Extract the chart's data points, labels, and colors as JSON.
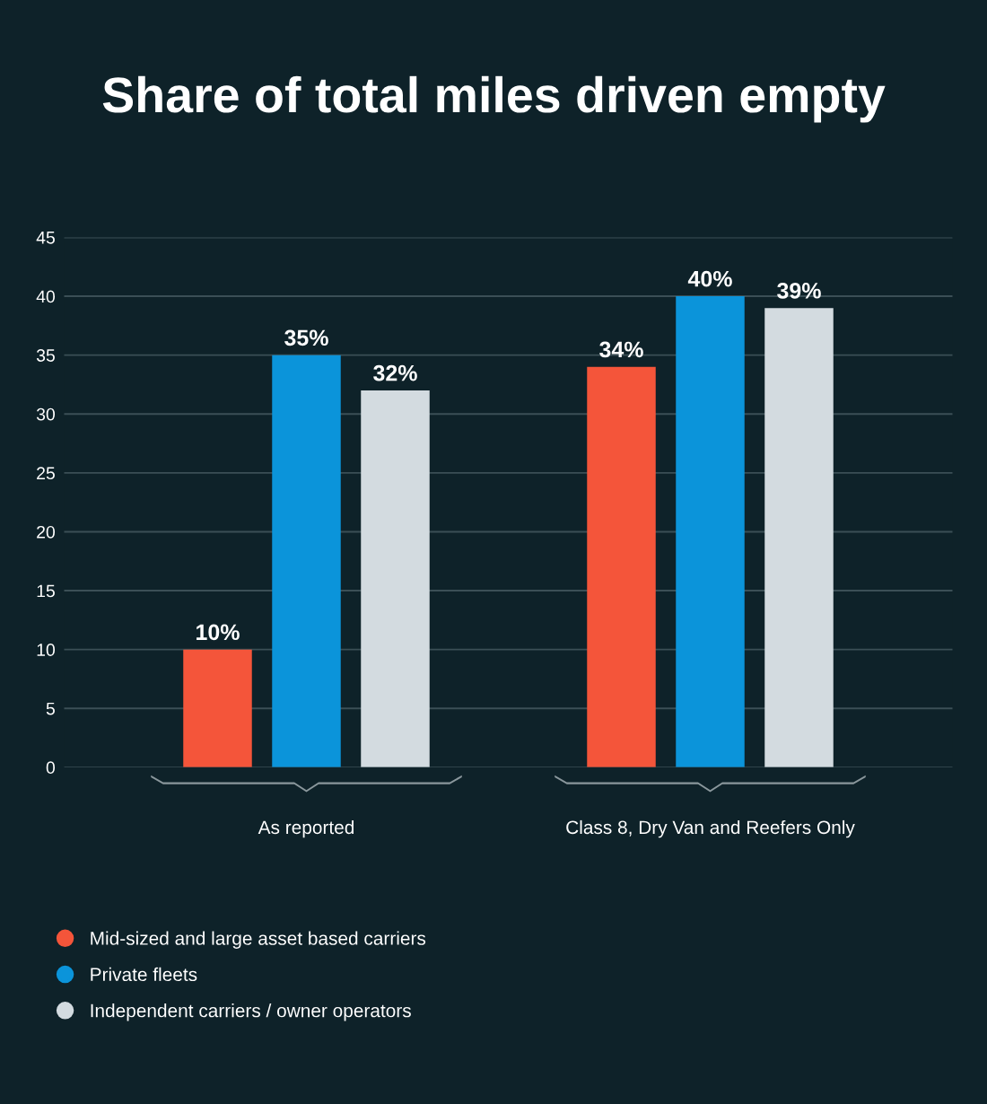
{
  "chart_data": {
    "type": "bar",
    "title": "Share of total miles driven empty",
    "categories": [
      "As reported",
      "Class 8, Dry Van and Reefers Only"
    ],
    "series": [
      {
        "name": "Mid-sized and large asset based carriers",
        "color": "#f4553a",
        "values": [
          10,
          34
        ],
        "value_labels": [
          "10%",
          "34%"
        ]
      },
      {
        "name": "Private fleets",
        "color": "#0b94da",
        "values": [
          35,
          40
        ],
        "value_labels": [
          "35%",
          "40%"
        ]
      },
      {
        "name": "Independent carriers / owner operators",
        "color": "#d3dbe0",
        "values": [
          32,
          39
        ],
        "value_labels": [
          "32%",
          "39%"
        ]
      }
    ],
    "ylim": [
      0,
      45
    ],
    "yticks": [
      0,
      5,
      10,
      15,
      20,
      25,
      30,
      35,
      40,
      45
    ],
    "grid": "y",
    "legend": "bottom left"
  }
}
